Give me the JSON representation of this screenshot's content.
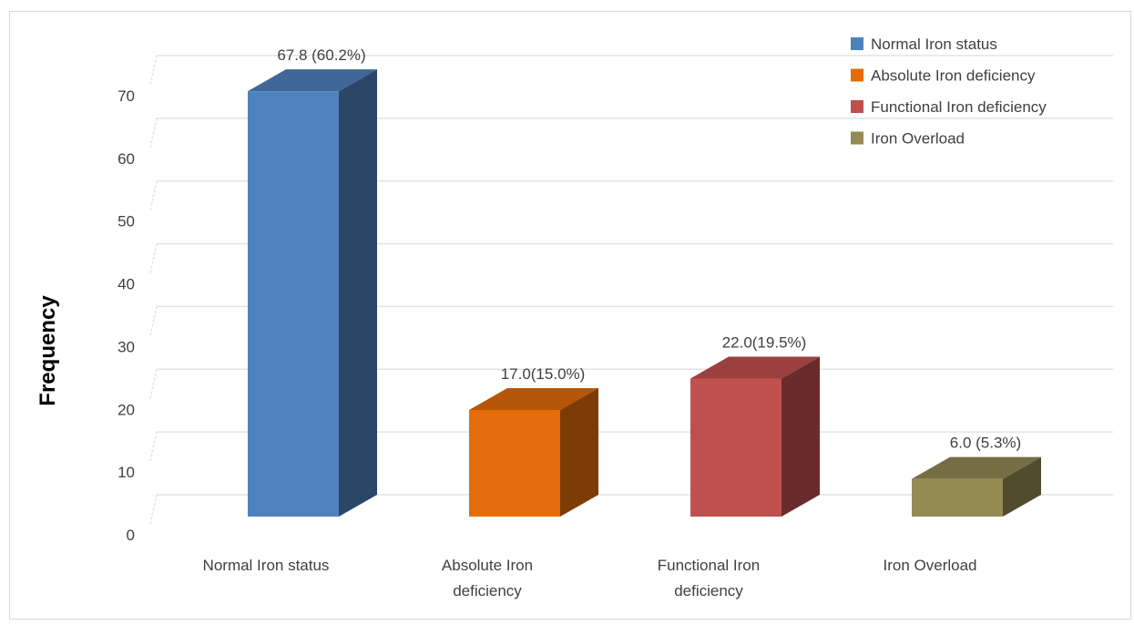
{
  "chart_data": {
    "type": "bar",
    "title": "",
    "xlabel": "",
    "ylabel": "Frequency",
    "ylim": [
      0,
      70
    ],
    "ytick_step": 10,
    "yticks": [
      "0",
      "10",
      "20",
      "30",
      "40",
      "50",
      "60",
      "70"
    ],
    "grid": true,
    "three_d": true,
    "legend_position": "top-right",
    "categories": [
      [
        "Normal Iron status"
      ],
      [
        "Absolute Iron",
        "deficiency"
      ],
      [
        "Functional Iron",
        "deficiency"
      ],
      [
        "Iron Overload"
      ]
    ],
    "series": [
      {
        "name_list": [
          "Normal Iron status",
          "Absolute Iron deficiency",
          "Functional Iron deficiency",
          "Iron Overload"
        ],
        "values": [
          67.8,
          17.0,
          22.0,
          6.0
        ],
        "data_labels": [
          "67.8 (60.2%)",
          "17.0(15.0%)",
          "22.0(19.5%)",
          "6.0 (5.3%)"
        ],
        "colors": [
          "#4f81bd",
          "#e46c0a",
          "#c0504d",
          "#948a54"
        ]
      }
    ],
    "legend": [
      {
        "label": "Normal Iron status",
        "color": "#4f81bd"
      },
      {
        "label": "Absolute Iron deficiency",
        "color": "#e46c0a"
      },
      {
        "label": "Functional Iron deficiency",
        "color": "#c0504d"
      },
      {
        "label": "Iron Overload",
        "color": "#948a54"
      }
    ]
  }
}
